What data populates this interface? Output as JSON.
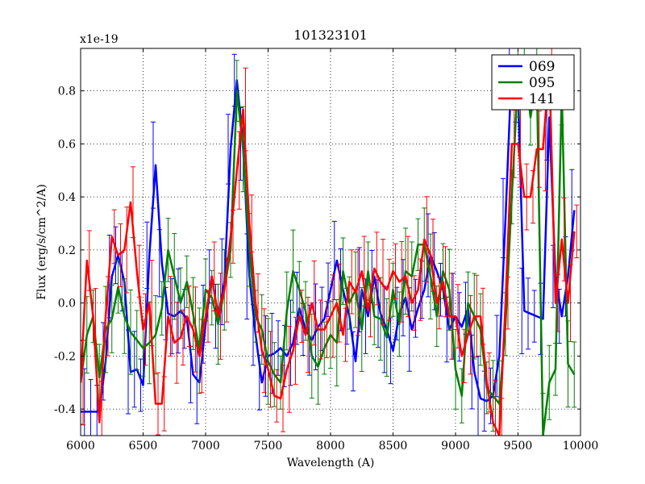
{
  "chart_data": {
    "type": "line",
    "title": "101323101",
    "xlabel": "Wavelength (A)",
    "ylabel": "Flux (erg/s/cm^2/A)",
    "offset_label": "x1e-19",
    "xlim": [
      6000,
      10000
    ],
    "ylim": [
      -0.5,
      0.96
    ],
    "xticks": [
      6000,
      6500,
      7000,
      7500,
      8000,
      8500,
      9000,
      9500,
      10000
    ],
    "xtick_labels": [
      "6000",
      "6500",
      "7000",
      "7500",
      "8000",
      "8500",
      "9000",
      "9500",
      "10000"
    ],
    "yticks": [
      -0.4,
      -0.2,
      0.0,
      0.2,
      0.4,
      0.6,
      0.8
    ],
    "ytick_labels": [
      "-0.4",
      "-0.2",
      "0.0",
      "0.2",
      "0.4",
      "0.6",
      "0.8"
    ],
    "grid": true,
    "legend_position": "top-right",
    "error_bar_halfwidth": 0.13,
    "series": [
      {
        "name": "069",
        "color": "#0000ff",
        "points": [
          [
            6000,
            -0.41
          ],
          [
            6050,
            -0.41
          ],
          [
            6100,
            -0.41
          ],
          [
            6150,
            -0.41
          ],
          [
            6200,
            -0.22
          ],
          [
            6250,
            0.1
          ],
          [
            6300,
            0.18
          ],
          [
            6350,
            0.08
          ],
          [
            6400,
            -0.26
          ],
          [
            6450,
            -0.25
          ],
          [
            6500,
            -0.31
          ],
          [
            6550,
            0.18
          ],
          [
            6600,
            0.52
          ],
          [
            6650,
            0.15
          ],
          [
            6700,
            -0.04
          ],
          [
            6750,
            -0.05
          ],
          [
            6800,
            -0.03
          ],
          [
            6850,
            -0.06
          ],
          [
            6900,
            -0.27
          ],
          [
            6950,
            -0.3
          ],
          [
            7000,
            -0.08
          ],
          [
            7050,
            0.1
          ],
          [
            7100,
            -0.05
          ],
          [
            7150,
            0.08
          ],
          [
            7200,
            0.58
          ],
          [
            7250,
            0.84
          ],
          [
            7300,
            0.6
          ],
          [
            7350,
            0.1
          ],
          [
            7400,
            -0.12
          ],
          [
            7450,
            -0.3
          ],
          [
            7500,
            -0.2
          ],
          [
            7550,
            -0.19
          ],
          [
            7600,
            -0.17
          ],
          [
            7650,
            -0.2
          ],
          [
            7700,
            -0.15
          ],
          [
            7750,
            -0.02
          ],
          [
            7800,
            -0.1
          ],
          [
            7850,
            -0.14
          ],
          [
            7900,
            -0.09
          ],
          [
            7950,
            -0.06
          ],
          [
            8000,
            0.05
          ],
          [
            8050,
            0.16
          ],
          [
            8100,
            0.05
          ],
          [
            8150,
            -0.05
          ],
          [
            8200,
            -0.22
          ],
          [
            8250,
            0.05
          ],
          [
            8300,
            -0.05
          ],
          [
            8350,
            0.1
          ],
          [
            8400,
            -0.04
          ],
          [
            8450,
            -0.1
          ],
          [
            8500,
            -0.18
          ],
          [
            8550,
            -0.04
          ],
          [
            8600,
            0.02
          ],
          [
            8650,
            -0.1
          ],
          [
            8700,
            -0.02
          ],
          [
            8750,
            0.05
          ],
          [
            8800,
            0.18
          ],
          [
            8850,
            0.12
          ],
          [
            8900,
            0.05
          ],
          [
            8950,
            -0.1
          ],
          [
            9000,
            -0.05
          ],
          [
            9050,
            -0.09
          ],
          [
            9100,
            -0.02
          ],
          [
            9150,
            -0.26
          ],
          [
            9200,
            -0.36
          ],
          [
            9250,
            -0.37
          ],
          [
            9300,
            -0.35
          ],
          [
            9350,
            -0.2
          ],
          [
            9400,
            0.32
          ],
          [
            9450,
            0.9
          ],
          [
            9500,
            0.8
          ],
          [
            9550,
            -0.03
          ],
          [
            9600,
            -0.04
          ],
          [
            9650,
            -0.05
          ],
          [
            9700,
            -0.06
          ],
          [
            9750,
            0.7
          ],
          [
            9800,
            0.1
          ],
          [
            9850,
            -0.05
          ],
          [
            9900,
            0.1
          ],
          [
            9950,
            0.35
          ]
        ]
      },
      {
        "name": "095",
        "color": "#008000",
        "points": [
          [
            6000,
            -0.3
          ],
          [
            6050,
            -0.12
          ],
          [
            6100,
            -0.05
          ],
          [
            6150,
            -0.28
          ],
          [
            6200,
            -0.1
          ],
          [
            6250,
            -0.06
          ],
          [
            6300,
            0.06
          ],
          [
            6350,
            -0.05
          ],
          [
            6400,
            -0.11
          ],
          [
            6450,
            -0.14
          ],
          [
            6500,
            -0.17
          ],
          [
            6550,
            -0.15
          ],
          [
            6600,
            -0.12
          ],
          [
            6650,
            -0.02
          ],
          [
            6700,
            0.2
          ],
          [
            6750,
            0.1
          ],
          [
            6800,
            0.0
          ],
          [
            6850,
            0.08
          ],
          [
            6900,
            -0.04
          ],
          [
            6950,
            -0.18
          ],
          [
            7000,
            0.05
          ],
          [
            7050,
            0.02
          ],
          [
            7100,
            -0.08
          ],
          [
            7150,
            0.05
          ],
          [
            7200,
            0.2
          ],
          [
            7250,
            0.8
          ],
          [
            7300,
            0.58
          ],
          [
            7350,
            0.2
          ],
          [
            7400,
            -0.05
          ],
          [
            7450,
            -0.1
          ],
          [
            7500,
            -0.22
          ],
          [
            7550,
            -0.27
          ],
          [
            7600,
            -0.3
          ],
          [
            7650,
            -0.03
          ],
          [
            7700,
            0.12
          ],
          [
            7750,
            0.05
          ],
          [
            7800,
            -0.03
          ],
          [
            7850,
            -0.2
          ],
          [
            7900,
            -0.24
          ],
          [
            7950,
            -0.17
          ],
          [
            8000,
            -0.12
          ],
          [
            8050,
            -0.15
          ],
          [
            8100,
            0.12
          ],
          [
            8150,
            0.0
          ],
          [
            8200,
            0.05
          ],
          [
            8250,
            -0.1
          ],
          [
            8300,
            0.12
          ],
          [
            8350,
            -0.05
          ],
          [
            8400,
            -0.06
          ],
          [
            8450,
            -0.13
          ],
          [
            8500,
            0.05
          ],
          [
            8550,
            -0.08
          ],
          [
            8600,
            0.12
          ],
          [
            8650,
            0.1
          ],
          [
            8700,
            0.22
          ],
          [
            8750,
            0.22
          ],
          [
            8800,
            0.1
          ],
          [
            8850,
            -0.05
          ],
          [
            8900,
            0.12
          ],
          [
            8950,
            0.05
          ],
          [
            9000,
            -0.25
          ],
          [
            9050,
            -0.35
          ],
          [
            9100,
            0.0
          ],
          [
            9150,
            -0.05
          ],
          [
            9200,
            -0.1
          ],
          [
            9250,
            -0.32
          ],
          [
            9300,
            -0.35
          ],
          [
            9350,
            -0.38
          ],
          [
            9400,
            -0.08
          ],
          [
            9450,
            0.4
          ],
          [
            9500,
            0.85
          ],
          [
            9550,
            0.9
          ],
          [
            9600,
            0.7
          ],
          [
            9650,
            0.85
          ],
          [
            9700,
            -0.5
          ],
          [
            9750,
            -0.3
          ],
          [
            9800,
            -0.25
          ],
          [
            9850,
            0.8
          ],
          [
            9900,
            -0.23
          ],
          [
            9950,
            -0.27
          ]
        ]
      },
      {
        "name": "141",
        "color": "#ff0000",
        "points": [
          [
            6000,
            -0.3
          ],
          [
            6050,
            0.16
          ],
          [
            6100,
            -0.05
          ],
          [
            6150,
            -0.45
          ],
          [
            6200,
            -0.05
          ],
          [
            6250,
            0.25
          ],
          [
            6300,
            0.18
          ],
          [
            6350,
            0.2
          ],
          [
            6400,
            0.38
          ],
          [
            6450,
            0.12
          ],
          [
            6500,
            -0.1
          ],
          [
            6550,
            0.0
          ],
          [
            6600,
            -0.38
          ],
          [
            6650,
            -0.38
          ],
          [
            6700,
            -0.05
          ],
          [
            6750,
            -0.15
          ],
          [
            6800,
            -0.13
          ],
          [
            6850,
            -0.05
          ],
          [
            6900,
            -0.1
          ],
          [
            6950,
            -0.2
          ],
          [
            7000,
            -0.05
          ],
          [
            7050,
            0.1
          ],
          [
            7100,
            -0.05
          ],
          [
            7150,
            0.05
          ],
          [
            7200,
            0.25
          ],
          [
            7250,
            0.5
          ],
          [
            7300,
            0.73
          ],
          [
            7350,
            0.3
          ],
          [
            7400,
            0.0
          ],
          [
            7450,
            -0.18
          ],
          [
            7500,
            -0.25
          ],
          [
            7550,
            -0.35
          ],
          [
            7600,
            -0.36
          ],
          [
            7650,
            -0.25
          ],
          [
            7700,
            -0.18
          ],
          [
            7750,
            -0.05
          ],
          [
            7800,
            -0.12
          ],
          [
            7850,
            0.0
          ],
          [
            7900,
            -0.1
          ],
          [
            7950,
            -0.1
          ],
          [
            8000,
            -0.05
          ],
          [
            8050,
            0.0
          ],
          [
            8100,
            -0.12
          ],
          [
            8150,
            0.08
          ],
          [
            8200,
            0.04
          ],
          [
            8250,
            0.12
          ],
          [
            8300,
            -0.03
          ],
          [
            8350,
            0.13
          ],
          [
            8400,
            0.08
          ],
          [
            8450,
            0.05
          ],
          [
            8500,
            0.12
          ],
          [
            8550,
            0.08
          ],
          [
            8600,
            0.1
          ],
          [
            8650,
            0.0
          ],
          [
            8700,
            0.05
          ],
          [
            8750,
            0.24
          ],
          [
            8800,
            0.18
          ],
          [
            8850,
            0.0
          ],
          [
            8900,
            0.08
          ],
          [
            8950,
            -0.05
          ],
          [
            9000,
            -0.05
          ],
          [
            9050,
            -0.2
          ],
          [
            9100,
            -0.12
          ],
          [
            9150,
            -0.05
          ],
          [
            9200,
            -0.05
          ],
          [
            9250,
            -0.3
          ],
          [
            9300,
            -0.45
          ],
          [
            9350,
            -0.5
          ],
          [
            9400,
            0.0
          ],
          [
            9450,
            0.6
          ],
          [
            9500,
            0.6
          ],
          [
            9550,
            0.4
          ],
          [
            9600,
            0.4
          ],
          [
            9650,
            0.58
          ],
          [
            9700,
            0.58
          ],
          [
            9750,
            0.9
          ],
          [
            9800,
            0.0
          ],
          [
            9850,
            0.24
          ],
          [
            9900,
            0.0
          ],
          [
            9950,
            0.27
          ]
        ]
      }
    ]
  }
}
